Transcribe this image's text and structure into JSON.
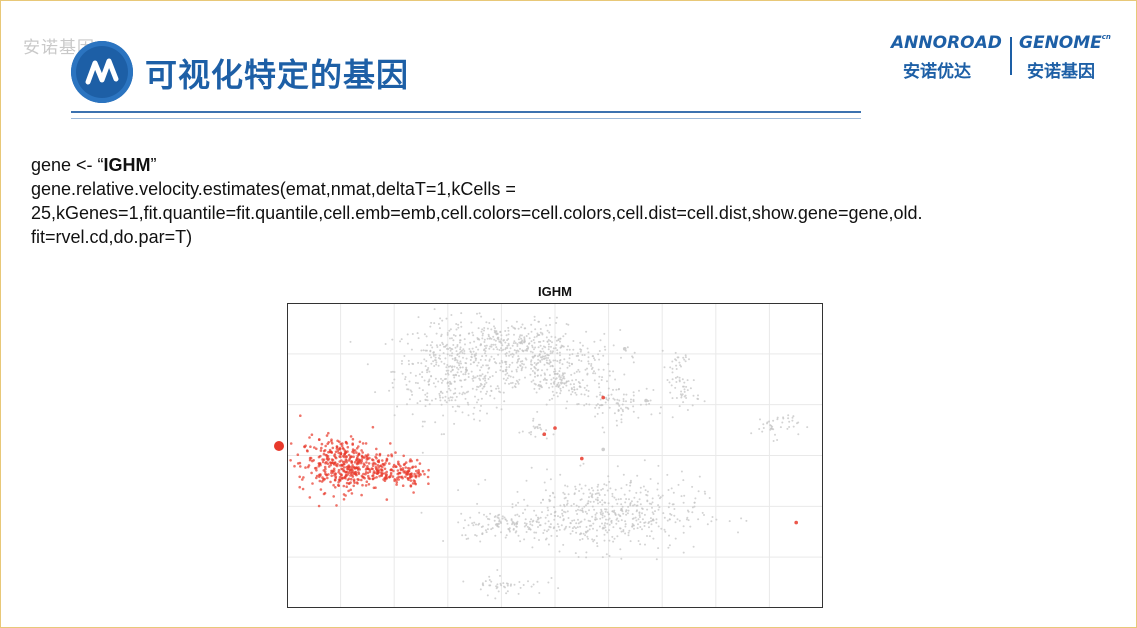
{
  "watermark": "安诺基因",
  "header": {
    "title": "可视化特定的基因",
    "brand_left_en": "ANNOROAD",
    "brand_left_cn": "安诺优达",
    "brand_right_en": "GENOME",
    "brand_right_sup": "cn",
    "brand_right_cn": "安诺基因",
    "accent_color": "#1d5fa6"
  },
  "code": {
    "line1_prefix": "gene <- “",
    "line1_gene": "IGHM",
    "line1_suffix": "”",
    "line2": "gene.relative.velocity.estimates(emat,nmat,deltaT=1,kCells =",
    "line3": "25,kGenes=1,fit.quantile=fit.quantile,cell.emb=emb,cell.colors=cell.colors,cell.dist=cell.dist,show.gene=gene,old.",
    "line4": "fit=rvel.cd,do.par=T)"
  },
  "chart_data": {
    "type": "scatter",
    "title": "IGHM",
    "xlabel": "",
    "ylabel": "",
    "xlim": [
      0,
      100
    ],
    "ylim": [
      0,
      100
    ],
    "grid": true,
    "colors": {
      "background_cells": "#c4c4c4",
      "highlight_cells": "#e8392b"
    },
    "clusters": [
      {
        "label": "",
        "color": "#c4c4c4",
        "cx": 31,
        "cy": 78,
        "sx": 5.5,
        "sy": 8,
        "n": 420
      },
      {
        "label": "",
        "color": "#c4c4c4",
        "cx": 48,
        "cy": 80,
        "sx": 7,
        "sy": 5.5,
        "n": 380
      },
      {
        "label": "",
        "color": "#c4c4c4",
        "cx": 42,
        "cy": 88,
        "sx": 5,
        "sy": 3.5,
        "n": 160
      },
      {
        "label": "",
        "color": "#c4c4c4",
        "cx": 61,
        "cy": 67,
        "sx": 4,
        "sy": 3,
        "n": 90
      },
      {
        "label": "",
        "color": "#c4c4c4",
        "cx": 74,
        "cy": 71,
        "sx": 1.5,
        "sy": 3,
        "n": 45
      },
      {
        "label": "",
        "color": "#c4c4c4",
        "cx": 73,
        "cy": 81,
        "sx": 1.2,
        "sy": 1.2,
        "n": 20
      },
      {
        "label": "",
        "color": "#c4c4c4",
        "cx": 52,
        "cy": 73,
        "sx": 2,
        "sy": 1.5,
        "n": 40
      },
      {
        "label": "",
        "color": "#c4c4c4",
        "cx": 91,
        "cy": 60,
        "sx": 2.2,
        "sy": 2.2,
        "n": 40
      },
      {
        "label": "",
        "color": "#c4c4c4",
        "cx": 47,
        "cy": 58,
        "sx": 1,
        "sy": 1.5,
        "n": 18
      },
      {
        "label": "",
        "color": "#c4c4c4",
        "cx": 59,
        "cy": 31,
        "sx": 9,
        "sy": 6,
        "n": 520
      },
      {
        "label": "",
        "color": "#c4c4c4",
        "cx": 42,
        "cy": 27,
        "sx": 5,
        "sy": 2,
        "n": 110
      },
      {
        "label": "",
        "color": "#c4c4c4",
        "cx": 41,
        "cy": 8,
        "sx": 3.5,
        "sy": 1.8,
        "n": 45
      },
      {
        "label": "",
        "color": "#e8392b",
        "cx": 10,
        "cy": 47,
        "sx": 3.8,
        "sy": 4.5,
        "n": 380
      },
      {
        "label": "",
        "color": "#e8392b",
        "cx": 18,
        "cy": 45,
        "sx": 3.5,
        "sy": 2.5,
        "n": 140
      },
      {
        "label": "",
        "color": "#e8392b",
        "cx": 23.5,
        "cy": 44,
        "sx": 1.2,
        "sy": 2,
        "n": 40
      }
    ],
    "points": [
      {
        "x": 48,
        "y": 57,
        "color": "#e8392b"
      },
      {
        "x": 50,
        "y": 59,
        "color": "#e8392b"
      },
      {
        "x": 59,
        "y": 69,
        "color": "#e8392b"
      },
      {
        "x": 55,
        "y": 49,
        "color": "#e8392b"
      },
      {
        "x": 95,
        "y": 28,
        "color": "#e8392b"
      },
      {
        "x": 63,
        "y": 85,
        "color": "#c4c4c4"
      },
      {
        "x": 67,
        "y": 68,
        "color": "#c4c4c4"
      },
      {
        "x": 59,
        "y": 52,
        "color": "#c4c4c4"
      }
    ],
    "outside_point": {
      "x": -1.5,
      "y": 53,
      "color": "#e8392b"
    }
  }
}
